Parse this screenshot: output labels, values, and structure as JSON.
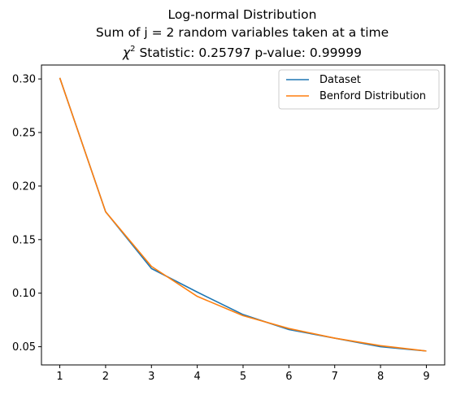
{
  "chart_data": {
    "type": "line",
    "title_lines": [
      "Log-normal Distribution",
      "Sum of j = 2 random variables taken at a time"
    ],
    "stat_line": {
      "chi_symbol": "χ",
      "chi_exponent": "2",
      "text": " Statistic: 0.25797 p-value: 0.99999"
    },
    "xlabel": "",
    "ylabel": "",
    "x": [
      1,
      2,
      3,
      4,
      5,
      6,
      7,
      8,
      9
    ],
    "x_ticks": [
      "1",
      "2",
      "3",
      "4",
      "5",
      "6",
      "7",
      "8",
      "9"
    ],
    "y_ticks": [
      0.05,
      0.1,
      0.15,
      0.2,
      0.25,
      0.3
    ],
    "y_tick_labels": [
      "0.05",
      "0.10",
      "0.15",
      "0.20",
      "0.25",
      "0.30"
    ],
    "xlim": [
      0.6,
      9.4
    ],
    "ylim": [
      0.033,
      0.313
    ],
    "grid": false,
    "legend_position": "top-right",
    "series": [
      {
        "name": "Dataset",
        "color": "#1f77b4",
        "values": [
          0.301,
          0.176,
          0.123,
          0.101,
          0.08,
          0.066,
          0.058,
          0.05,
          0.046
        ]
      },
      {
        "name": "Benford Distribution",
        "color": "#ff7f0e",
        "values": [
          0.301,
          0.176,
          0.125,
          0.097,
          0.079,
          0.067,
          0.058,
          0.051,
          0.046
        ]
      }
    ]
  }
}
